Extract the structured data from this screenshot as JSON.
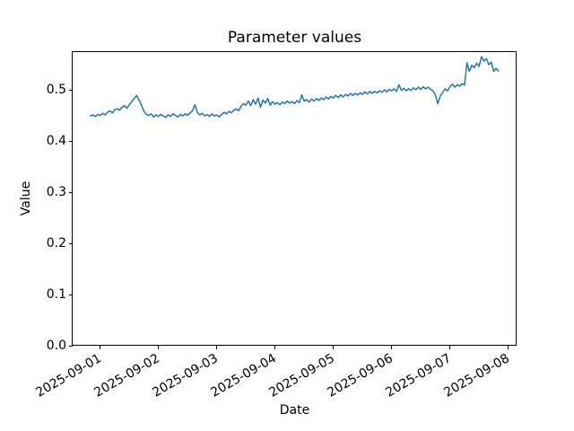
{
  "chart_data": {
    "type": "line",
    "title": "Parameter values",
    "xlabel": "Date",
    "ylabel": "Value",
    "grid": false,
    "legend": null,
    "x_tick_labels": [
      "2025-09-01",
      "2025-09-02",
      "2025-09-03",
      "2025-09-04",
      "2025-09-05",
      "2025-09-06",
      "2025-09-07",
      "2025-09-08"
    ],
    "y_tick_labels": [
      "0.0",
      "0.1",
      "0.2",
      "0.3",
      "0.4",
      "0.5"
    ],
    "ylim": [
      0,
      0.5746
    ],
    "xlim_days_from_2025_09_01": [
      -0.472,
      7.143
    ],
    "x_start_offset_days": -0.16667,
    "sample_interval_hours": 1,
    "series": [
      {
        "name": "parameter-values",
        "color": "#1f77b4",
        "line_width": 1.5,
        "values": [
          0.449,
          0.451,
          0.448,
          0.452,
          0.45,
          0.454,
          0.451,
          0.456,
          0.459,
          0.455,
          0.461,
          0.463,
          0.46,
          0.466,
          0.469,
          0.464,
          0.471,
          0.477,
          0.483,
          0.489,
          0.48,
          0.47,
          0.458,
          0.452,
          0.45,
          0.453,
          0.447,
          0.451,
          0.448,
          0.452,
          0.449,
          0.446,
          0.451,
          0.448,
          0.453,
          0.45,
          0.447,
          0.452,
          0.449,
          0.453,
          0.45,
          0.455,
          0.459,
          0.471,
          0.456,
          0.451,
          0.454,
          0.449,
          0.452,
          0.448,
          0.453,
          0.449,
          0.451,
          0.447,
          0.452,
          0.456,
          0.453,
          0.458,
          0.455,
          0.46,
          0.463,
          0.459,
          0.468,
          0.473,
          0.47,
          0.478,
          0.469,
          0.481,
          0.472,
          0.484,
          0.466,
          0.48,
          0.474,
          0.483,
          0.47,
          0.477,
          0.472,
          0.475,
          0.471,
          0.476,
          0.473,
          0.478,
          0.474,
          0.477,
          0.473,
          0.479,
          0.475,
          0.49,
          0.478,
          0.481,
          0.476,
          0.482,
          0.478,
          0.483,
          0.479,
          0.484,
          0.481,
          0.486,
          0.482,
          0.487,
          0.484,
          0.489,
          0.485,
          0.49,
          0.486,
          0.491,
          0.488,
          0.493,
          0.489,
          0.493,
          0.49,
          0.494,
          0.491,
          0.496,
          0.492,
          0.497,
          0.493,
          0.497,
          0.494,
          0.498,
          0.495,
          0.5,
          0.496,
          0.501,
          0.498,
          0.502,
          0.497,
          0.51,
          0.499,
          0.503,
          0.498,
          0.502,
          0.499,
          0.504,
          0.5,
          0.505,
          0.501,
          0.506,
          0.502,
          0.505,
          0.501,
          0.498,
          0.49,
          0.473,
          0.488,
          0.495,
          0.502,
          0.498,
          0.506,
          0.511,
          0.505,
          0.51,
          0.507,
          0.512,
          0.509,
          0.553,
          0.536,
          0.548,
          0.543,
          0.552,
          0.546,
          0.565,
          0.556,
          0.561,
          0.549,
          0.554,
          0.536,
          0.542,
          0.537
        ]
      }
    ]
  }
}
